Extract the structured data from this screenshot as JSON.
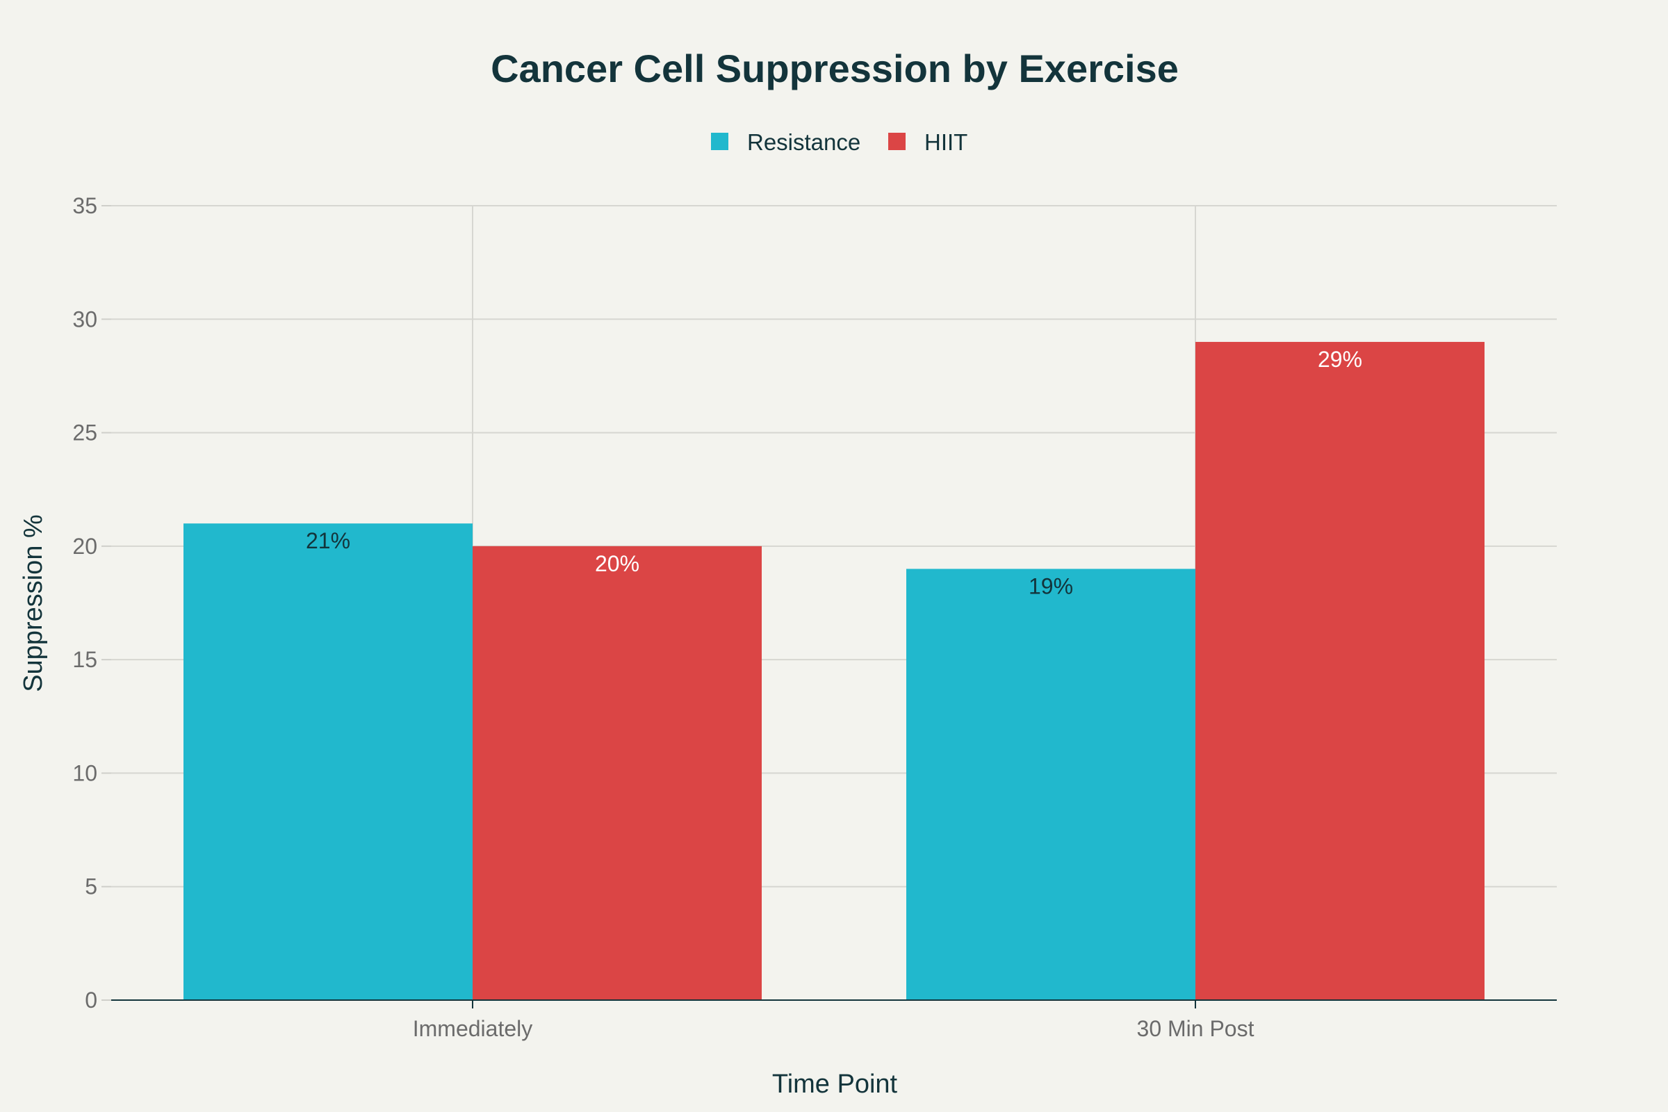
{
  "chart_data": {
    "type": "bar",
    "title": "Cancer Cell Suppression by Exercise",
    "xlabel": "Time Point",
    "ylabel": "Suppression %",
    "categories": [
      "Immediately",
      "30 Min Post"
    ],
    "series": [
      {
        "name": "Resistance",
        "values": [
          21,
          19
        ],
        "labels": [
          "21%",
          "19%"
        ],
        "color": "#21b8cd",
        "label_color": "#13343b"
      },
      {
        "name": "HIIT",
        "values": [
          20,
          29
        ],
        "labels": [
          "20%",
          "29%"
        ],
        "color": "#db4545",
        "label_color": "#ffffff"
      }
    ],
    "ylim": [
      0,
      35
    ],
    "yticks": [
      "0",
      "5",
      "10",
      "15",
      "20",
      "25",
      "30",
      "35"
    ],
    "grid": true,
    "legend_position": "top-center",
    "background": "#f3f3ee"
  }
}
